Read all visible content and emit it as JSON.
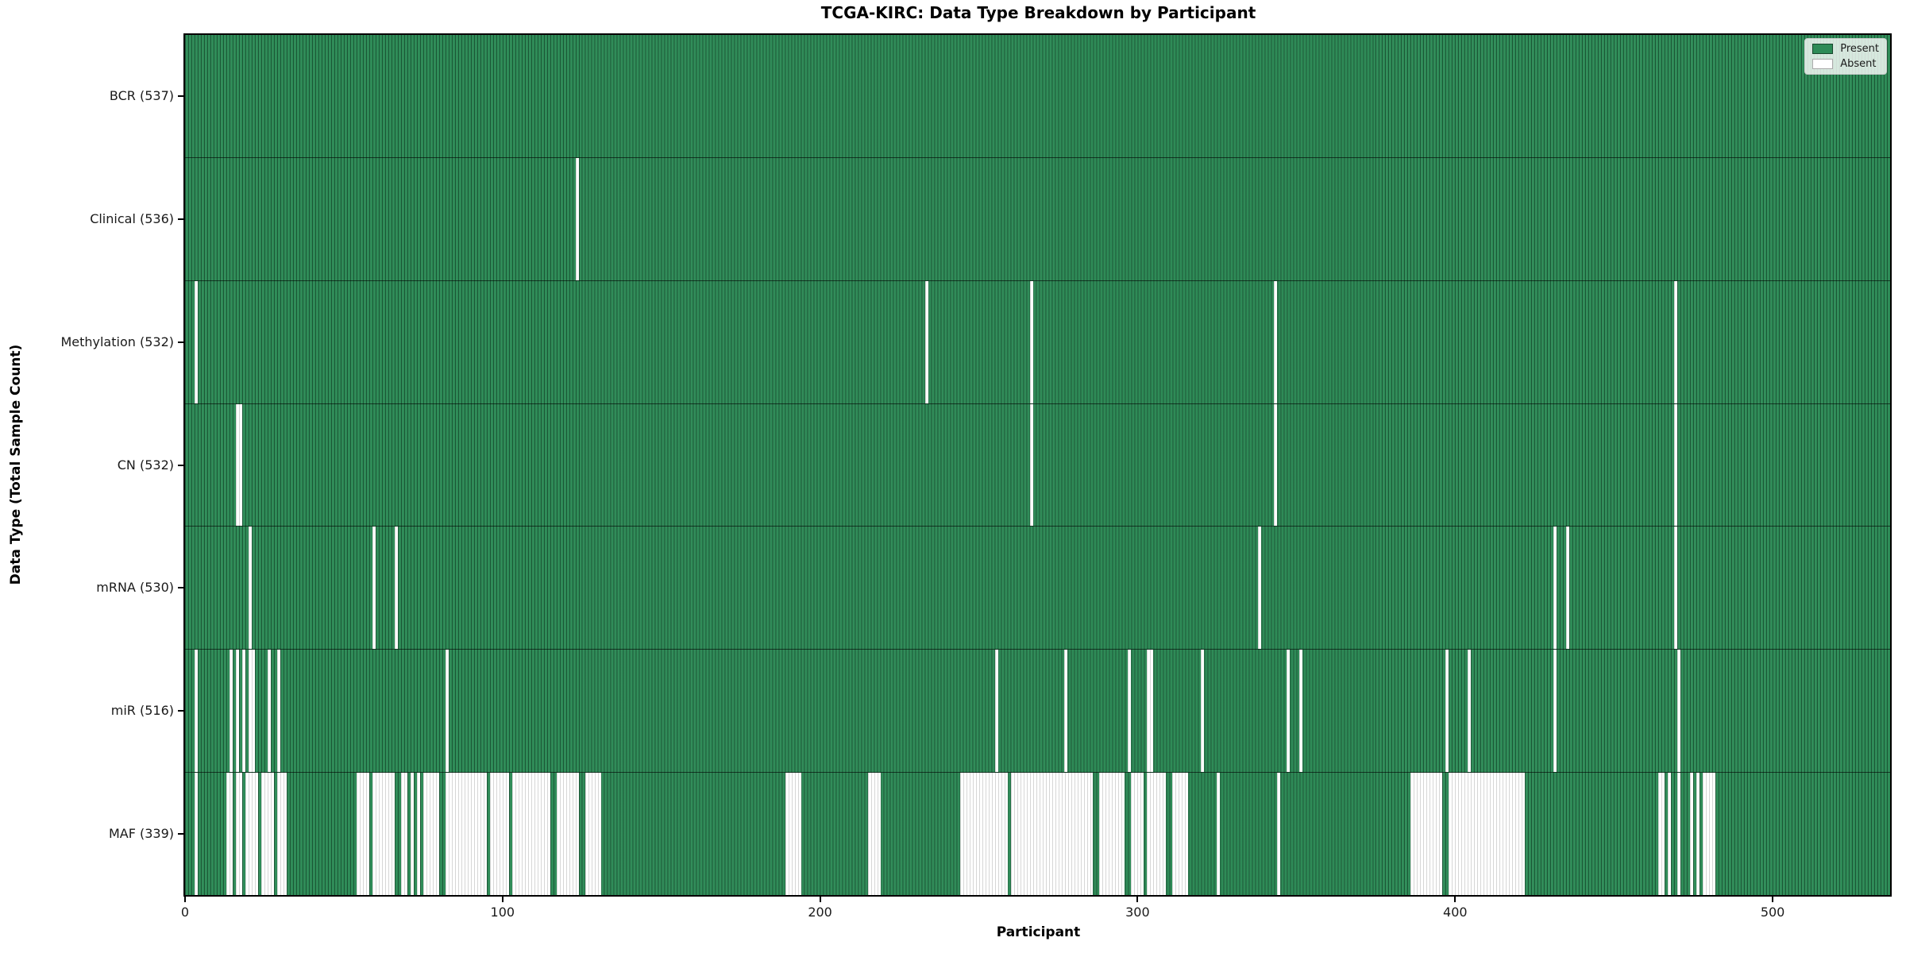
{
  "title": "TCGA-KIRC: Data Type Breakdown by Participant",
  "x_axis": {
    "label": "Participant",
    "min": 0,
    "max": 537,
    "ticks": [
      0,
      100,
      200,
      300,
      400,
      500
    ]
  },
  "y_axis": {
    "label": "Data Type (Total Sample Count)"
  },
  "legend": {
    "position": "upper right",
    "present_label": "Present",
    "absent_label": "Absent"
  },
  "colors": {
    "present": "#2e8b57",
    "absent": "#ffffff",
    "mesh_line": "#1d5737",
    "row_divider": "#1a1a1a",
    "spine": "#000000",
    "background": "#ffffff"
  },
  "chart_data": {
    "type": "heatmap",
    "grid": false,
    "n_participants": 537,
    "cell_states": [
      "present",
      "absent"
    ],
    "rows": [
      {
        "name": "BCR",
        "label": "BCR (537)",
        "present_count": 537,
        "absent_ranges": []
      },
      {
        "name": "Clinical",
        "label": "Clinical (536)",
        "present_count": 536,
        "absent_ranges": [
          [
            123,
            123
          ]
        ]
      },
      {
        "name": "Methylation",
        "label": "Methylation (532)",
        "present_count": 532,
        "absent_ranges": [
          [
            3,
            3
          ],
          [
            233,
            233
          ],
          [
            266,
            266
          ],
          [
            343,
            343
          ],
          [
            469,
            469
          ]
        ]
      },
      {
        "name": "CN",
        "label": "CN (532)",
        "present_count": 532,
        "absent_ranges": [
          [
            16,
            17
          ],
          [
            266,
            266
          ],
          [
            343,
            343
          ],
          [
            469,
            469
          ]
        ]
      },
      {
        "name": "mRNA",
        "label": "mRNA (530)",
        "present_count": 530,
        "absent_ranges": [
          [
            20,
            20
          ],
          [
            59,
            59
          ],
          [
            66,
            66
          ],
          [
            338,
            338
          ],
          [
            431,
            431
          ],
          [
            435,
            435
          ],
          [
            469,
            469
          ]
        ]
      },
      {
        "name": "miR",
        "label": "miR (516)",
        "present_count": 516,
        "absent_ranges": [
          [
            3,
            3
          ],
          [
            14,
            14
          ],
          [
            16,
            16
          ],
          [
            18,
            18
          ],
          [
            20,
            21
          ],
          [
            26,
            26
          ],
          [
            29,
            29
          ],
          [
            82,
            82
          ],
          [
            255,
            255
          ],
          [
            277,
            277
          ],
          [
            297,
            297
          ],
          [
            303,
            304
          ],
          [
            320,
            320
          ],
          [
            347,
            347
          ],
          [
            351,
            351
          ],
          [
            397,
            397
          ],
          [
            404,
            404
          ],
          [
            431,
            431
          ],
          [
            470,
            470
          ]
        ]
      },
      {
        "name": "MAF",
        "label": "MAF (339)",
        "present_count": 339,
        "absent_ranges": [
          [
            3,
            3
          ],
          [
            13,
            14
          ],
          [
            16,
            17
          ],
          [
            19,
            22
          ],
          [
            24,
            27
          ],
          [
            29,
            31
          ],
          [
            54,
            57
          ],
          [
            59,
            65
          ],
          [
            68,
            69
          ],
          [
            71,
            71
          ],
          [
            73,
            73
          ],
          [
            75,
            79
          ],
          [
            82,
            94
          ],
          [
            96,
            101
          ],
          [
            103,
            114
          ],
          [
            117,
            123
          ],
          [
            126,
            130
          ],
          [
            189,
            193
          ],
          [
            215,
            218
          ],
          [
            244,
            258
          ],
          [
            260,
            285
          ],
          [
            288,
            295
          ],
          [
            298,
            301
          ],
          [
            303,
            308
          ],
          [
            311,
            315
          ],
          [
            325,
            325
          ],
          [
            344,
            344
          ],
          [
            386,
            395
          ],
          [
            398,
            421
          ],
          [
            464,
            465
          ],
          [
            467,
            467
          ],
          [
            470,
            470
          ],
          [
            474,
            474
          ],
          [
            476,
            476
          ],
          [
            478,
            481
          ]
        ]
      }
    ]
  }
}
